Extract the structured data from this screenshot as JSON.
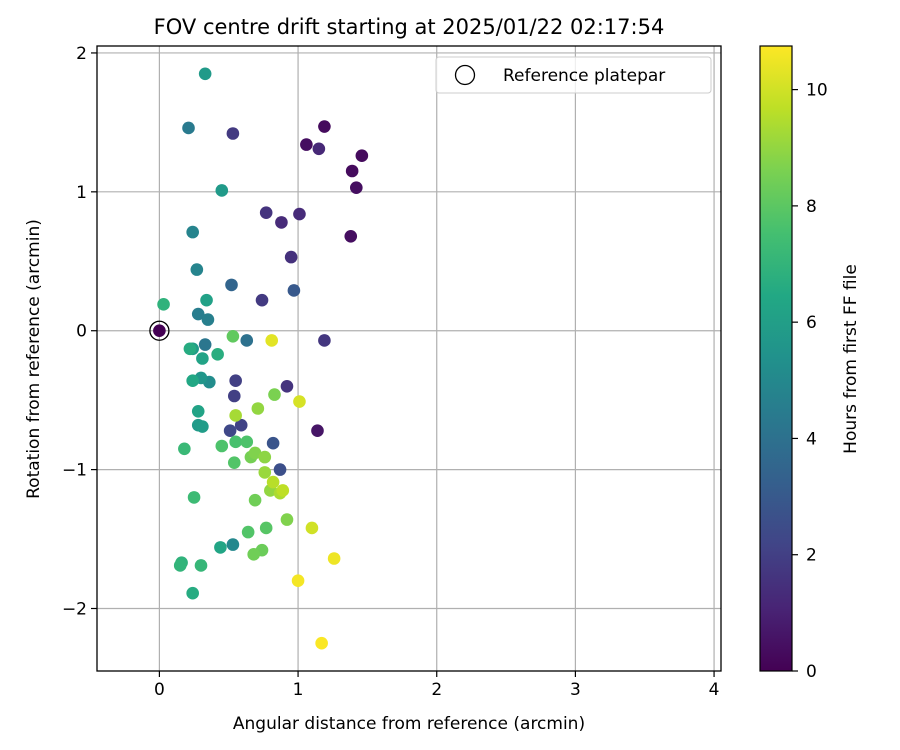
{
  "chart_data": {
    "type": "scatter",
    "title": "FOV centre drift starting at 2025/01/22 02:17:54",
    "xlabel": "Angular distance from reference (arcmin)",
    "ylabel": "Rotation from reference (arcmin)",
    "xlim": [
      -0.45,
      4.05
    ],
    "ylim": [
      -2.45,
      2.05
    ],
    "xticks": [
      0,
      1,
      2,
      3,
      4
    ],
    "yticks": [
      -2,
      -1,
      0,
      1,
      2
    ],
    "xtick_labels": [
      "0",
      "1",
      "2",
      "3",
      "4"
    ],
    "ytick_labels": [
      "−2",
      "−1",
      "0",
      "1",
      "2"
    ],
    "grid": true,
    "legend": {
      "position": "top-right",
      "entries": [
        "Reference platepar"
      ]
    },
    "colorbar": {
      "label": "Hours from first FF file",
      "range": [
        0,
        10.75
      ],
      "ticks": [
        0,
        2,
        4,
        6,
        8,
        10
      ],
      "tick_labels": [
        "0",
        "2",
        "4",
        "6",
        "8",
        "10"
      ],
      "colormap": "viridis"
    },
    "reference_point": {
      "x": 0,
      "y": 0,
      "hours": 0.0
    },
    "points": [
      {
        "x": 0.0,
        "y": 0.0,
        "hours": 0.0
      },
      {
        "x": 1.19,
        "y": 1.47,
        "hours": 0.3
      },
      {
        "x": 1.06,
        "y": 1.34,
        "hours": 0.4
      },
      {
        "x": 1.46,
        "y": 1.26,
        "hours": 0.3
      },
      {
        "x": 1.39,
        "y": 1.15,
        "hours": 0.3
      },
      {
        "x": 1.42,
        "y": 1.03,
        "hours": 0.4
      },
      {
        "x": 1.38,
        "y": 0.68,
        "hours": 0.4
      },
      {
        "x": 1.14,
        "y": -0.72,
        "hours": 0.6
      },
      {
        "x": 1.15,
        "y": 1.31,
        "hours": 1.2
      },
      {
        "x": 1.01,
        "y": 0.84,
        "hours": 1.3
      },
      {
        "x": 0.88,
        "y": 0.78,
        "hours": 1.3
      },
      {
        "x": 0.95,
        "y": 0.53,
        "hours": 1.5
      },
      {
        "x": 0.77,
        "y": 0.85,
        "hours": 1.6
      },
      {
        "x": 0.53,
        "y": 1.42,
        "hours": 1.8
      },
      {
        "x": 0.74,
        "y": 0.22,
        "hours": 1.8
      },
      {
        "x": 0.92,
        "y": -0.4,
        "hours": 1.6
      },
      {
        "x": 1.19,
        "y": -0.07,
        "hours": 1.7
      },
      {
        "x": 0.55,
        "y": -0.36,
        "hours": 2.0
      },
      {
        "x": 0.54,
        "y": -0.47,
        "hours": 2.0
      },
      {
        "x": 0.59,
        "y": -0.68,
        "hours": 2.1
      },
      {
        "x": 0.51,
        "y": -0.72,
        "hours": 2.3
      },
      {
        "x": 0.82,
        "y": -0.81,
        "hours": 2.8
      },
      {
        "x": 0.87,
        "y": -1.0,
        "hours": 2.6
      },
      {
        "x": 0.97,
        "y": 0.29,
        "hours": 3.0
      },
      {
        "x": 0.52,
        "y": 0.33,
        "hours": 3.5
      },
      {
        "x": 0.63,
        "y": -0.07,
        "hours": 4.0
      },
      {
        "x": 0.33,
        "y": -0.1,
        "hours": 4.2
      },
      {
        "x": 0.21,
        "y": 1.46,
        "hours": 4.4
      },
      {
        "x": 0.28,
        "y": 0.12,
        "hours": 4.5
      },
      {
        "x": 0.35,
        "y": 0.08,
        "hours": 4.6
      },
      {
        "x": 0.27,
        "y": 0.44,
        "hours": 4.8
      },
      {
        "x": 0.24,
        "y": 0.71,
        "hours": 4.8
      },
      {
        "x": 0.53,
        "y": -1.54,
        "hours": 5.0
      },
      {
        "x": 0.36,
        "y": -0.37,
        "hours": 5.2
      },
      {
        "x": 0.3,
        "y": -0.34,
        "hours": 5.6
      },
      {
        "x": 0.33,
        "y": 1.85,
        "hours": 5.8
      },
      {
        "x": 0.45,
        "y": 1.01,
        "hours": 5.8
      },
      {
        "x": 0.28,
        "y": -0.68,
        "hours": 5.8
      },
      {
        "x": 0.31,
        "y": -0.69,
        "hours": 5.9
      },
      {
        "x": 0.24,
        "y": -0.13,
        "hours": 5.9
      },
      {
        "x": 0.34,
        "y": 0.22,
        "hours": 6.1
      },
      {
        "x": 0.31,
        "y": -0.2,
        "hours": 6.2
      },
      {
        "x": 0.28,
        "y": -0.58,
        "hours": 6.2
      },
      {
        "x": 0.44,
        "y": -1.56,
        "hours": 6.3
      },
      {
        "x": 0.24,
        "y": -0.36,
        "hours": 6.4
      },
      {
        "x": 0.22,
        "y": -0.13,
        "hours": 6.6
      },
      {
        "x": 0.42,
        "y": -0.17,
        "hours": 6.7
      },
      {
        "x": 0.24,
        "y": -1.89,
        "hours": 6.6
      },
      {
        "x": 0.03,
        "y": 0.19,
        "hours": 6.9
      },
      {
        "x": 0.16,
        "y": -1.67,
        "hours": 6.9
      },
      {
        "x": 0.15,
        "y": -1.69,
        "hours": 7.0
      },
      {
        "x": 0.3,
        "y": -1.69,
        "hours": 7.1
      },
      {
        "x": 0.18,
        "y": -0.85,
        "hours": 7.2
      },
      {
        "x": 0.25,
        "y": -1.2,
        "hours": 7.3
      },
      {
        "x": 0.45,
        "y": -0.83,
        "hours": 7.7
      },
      {
        "x": 0.55,
        "y": -0.8,
        "hours": 7.6
      },
      {
        "x": 0.63,
        "y": -0.8,
        "hours": 7.7
      },
      {
        "x": 0.54,
        "y": -0.95,
        "hours": 7.8
      },
      {
        "x": 0.64,
        "y": -1.45,
        "hours": 7.8
      },
      {
        "x": 0.77,
        "y": -1.42,
        "hours": 7.9
      },
      {
        "x": 0.53,
        "y": -0.04,
        "hours": 8.1
      },
      {
        "x": 0.74,
        "y": -1.58,
        "hours": 8.3
      },
      {
        "x": 0.68,
        "y": -1.61,
        "hours": 8.4
      },
      {
        "x": 0.69,
        "y": -1.22,
        "hours": 8.4
      },
      {
        "x": 0.66,
        "y": -0.91,
        "hours": 8.5
      },
      {
        "x": 0.69,
        "y": -0.88,
        "hours": 8.7
      },
      {
        "x": 0.76,
        "y": -0.91,
        "hours": 8.9
      },
      {
        "x": 0.92,
        "y": -1.36,
        "hours": 8.7
      },
      {
        "x": 0.83,
        "y": -0.46,
        "hours": 8.6
      },
      {
        "x": 0.71,
        "y": -0.56,
        "hours": 9.0
      },
      {
        "x": 0.8,
        "y": -1.15,
        "hours": 9.0
      },
      {
        "x": 0.76,
        "y": -1.02,
        "hours": 9.1
      },
      {
        "x": 0.55,
        "y": -0.61,
        "hours": 9.3
      },
      {
        "x": 0.87,
        "y": -1.17,
        "hours": 9.4
      },
      {
        "x": 0.82,
        "y": -1.09,
        "hours": 9.6
      },
      {
        "x": 0.89,
        "y": -1.15,
        "hours": 9.7
      },
      {
        "x": 1.1,
        "y": -1.42,
        "hours": 10.0
      },
      {
        "x": 1.01,
        "y": -0.51,
        "hours": 10.1
      },
      {
        "x": 0.81,
        "y": -0.07,
        "hours": 10.3
      },
      {
        "x": 1.26,
        "y": -1.64,
        "hours": 10.5
      },
      {
        "x": 1.0,
        "y": -1.8,
        "hours": 10.6
      },
      {
        "x": 1.17,
        "y": -2.25,
        "hours": 10.7
      }
    ]
  }
}
